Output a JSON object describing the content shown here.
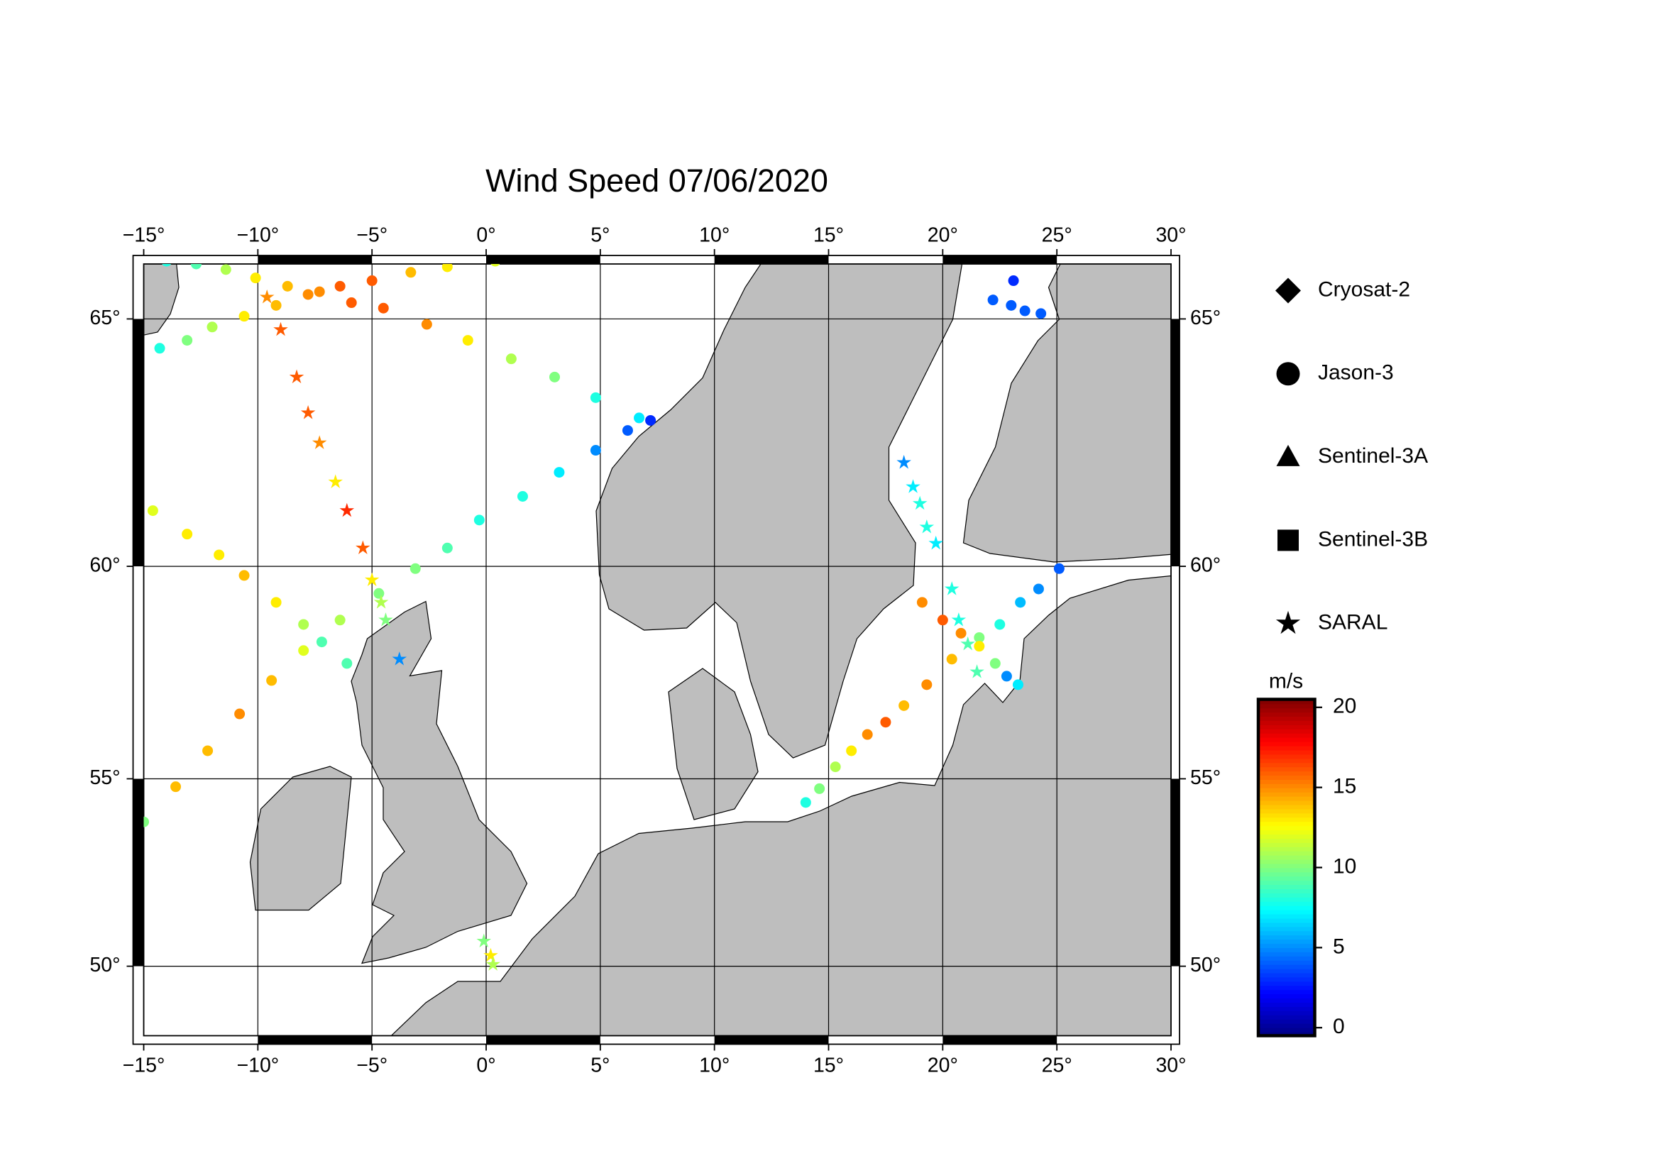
{
  "chart_data": {
    "type": "map",
    "title": "Wind Speed 07/06/2020",
    "projection": "mercator",
    "xlim": [
      -15,
      30
    ],
    "ylim": [
      48,
      66
    ],
    "xticks": [
      {
        "value": -15,
        "label": "−15°"
      },
      {
        "value": -10,
        "label": "−10°"
      },
      {
        "value": -5,
        "label": "−5°"
      },
      {
        "value": 0,
        "label": "0°"
      },
      {
        "value": 5,
        "label": "5°"
      },
      {
        "value": 10,
        "label": "10°"
      },
      {
        "value": 15,
        "label": "15°"
      },
      {
        "value": 20,
        "label": "20°"
      },
      {
        "value": 25,
        "label": "25°"
      },
      {
        "value": 30,
        "label": "30°"
      }
    ],
    "yticks": [
      {
        "value": 50,
        "label": "50°"
      },
      {
        "value": 55,
        "label": "55°"
      },
      {
        "value": 60,
        "label": "60°"
      },
      {
        "value": 65,
        "label": "65°"
      }
    ],
    "grid": true,
    "colorbar": {
      "label": "m/s",
      "colormap": "jet",
      "clim": [
        -0.5,
        20.5
      ],
      "ticks": [
        0,
        5,
        10,
        15,
        20
      ]
    },
    "satellites": [
      {
        "name": "Cryosat-2",
        "marker": "diamond",
        "tracks": []
      },
      {
        "name": "Jason-3",
        "marker": "circle",
        "tracks": [
          {
            "lon": [
              -14.0,
              -12.7,
              -11.4,
              -10.1,
              -8.7,
              -7.3,
              -5.9,
              -4.5,
              -2.6,
              -0.8,
              1.1,
              3.0,
              4.8,
              6.7
            ],
            "lat": [
              66.05,
              66.0,
              65.9,
              65.75,
              65.6,
              65.5,
              65.3,
              65.2,
              64.9,
              64.6,
              64.25,
              63.9,
              63.5,
              63.1
            ],
            "speed": [
              8,
              9,
              11,
              13,
              14,
              15,
              16,
              16,
              15,
              13,
              11,
              10,
              8,
              7
            ]
          },
          {
            "lon": [
              -14.3,
              -13.1,
              -12.0,
              -10.6,
              -9.2,
              -7.8,
              -6.4,
              -5.0,
              -3.3,
              -1.7,
              0.4
            ],
            "lat": [
              64.45,
              64.6,
              64.85,
              65.05,
              65.25,
              65.45,
              65.6,
              65.7,
              65.85,
              65.95,
              66.05
            ],
            "speed": [
              8,
              10,
              11,
              13,
              14,
              15,
              16,
              16,
              14,
              13,
              12
            ]
          },
          {
            "lon": [
              -15.0,
              -13.6,
              -12.2,
              -10.8,
              -9.4,
              -8.0,
              -6.4,
              -4.7,
              -3.1,
              -1.7,
              -0.3,
              1.6,
              3.2,
              4.8,
              6.2,
              7.2
            ],
            "lat": [
              53.9,
              54.8,
              55.7,
              56.6,
              57.4,
              58.1,
              58.8,
              59.4,
              59.95,
              60.4,
              61.0,
              61.5,
              62.0,
              62.45,
              62.85,
              63.05
            ],
            "speed": [
              10,
              14,
              14,
              15,
              14,
              12,
              11,
              10,
              10,
              9,
              8,
              8,
              7,
              5,
              4,
              3
            ]
          },
          {
            "lon": [
              -14.6,
              -13.1,
              -11.7,
              -10.6,
              -9.2,
              -8.0,
              -7.2
            ],
            "lat": [
              61.2,
              60.7,
              60.25,
              59.8,
              59.2,
              58.7,
              58.3
            ],
            "speed": [
              12,
              13,
              13,
              14,
              13,
              11,
              9
            ]
          },
          {
            "lon": [
              14.0,
              14.6,
              15.3,
              16.0,
              16.7,
              17.5,
              18.3,
              19.3,
              20.4,
              21.6,
              22.5,
              23.4,
              24.2,
              25.1
            ],
            "lat": [
              54.4,
              54.75,
              55.3,
              55.7,
              56.1,
              56.4,
              56.8,
              57.3,
              57.9,
              58.4,
              58.7,
              59.2,
              59.5,
              59.95
            ],
            "speed": [
              8,
              10,
              11,
              13,
              15,
              16,
              14,
              15,
              14,
              10,
              8,
              6,
              5,
              4
            ]
          },
          {
            "lon": [
              19.1,
              20.0,
              20.8,
              21.6,
              22.3,
              22.8,
              23.3
            ],
            "lat": [
              59.2,
              58.8,
              58.5,
              58.2,
              57.8,
              57.5,
              57.3
            ],
            "speed": [
              15,
              16,
              15,
              13,
              10,
              5,
              7
            ]
          },
          {
            "lon": [
              23.1,
              22.2,
              23.0,
              23.6,
              24.3
            ],
            "lat": [
              65.7,
              65.35,
              65.25,
              65.15,
              65.1
            ],
            "speed": [
              3,
              4,
              4,
              4,
              4
            ]
          },
          {
            "lon": [
              -6.1
            ],
            "lat": [
              57.8
            ],
            "speed": [
              9
            ]
          }
        ]
      },
      {
        "name": "Sentinel-3A",
        "marker": "triangle",
        "tracks": []
      },
      {
        "name": "Sentinel-3B",
        "marker": "square",
        "tracks": []
      },
      {
        "name": "SARAL",
        "marker": "star",
        "tracks": [
          {
            "lon": [
              -9.6,
              -9.0,
              -8.3,
              -7.8,
              -7.3,
              -6.6,
              -6.1,
              -5.4,
              -5.0,
              -4.6,
              -4.4
            ],
            "lat": [
              65.4,
              64.8,
              63.9,
              63.2,
              62.6,
              61.8,
              61.2,
              60.4,
              59.7,
              59.2,
              58.8
            ],
            "speed": [
              15,
              16,
              16,
              16,
              15,
              13,
              17,
              16,
              13,
              11,
              10
            ]
          },
          {
            "lon": [
              -3.8
            ],
            "lat": [
              57.9
            ],
            "speed": [
              5
            ]
          },
          {
            "lon": [
              18.3,
              18.7,
              19.0,
              19.3,
              19.7,
              20.4,
              20.7,
              21.1,
              21.5
            ],
            "lat": [
              62.2,
              61.7,
              61.35,
              60.85,
              60.5,
              59.5,
              58.8,
              58.25,
              57.6
            ],
            "speed": [
              5,
              7,
              8,
              8,
              7,
              8,
              8,
              9,
              9
            ]
          },
          {
            "lon": [
              -0.1,
              0.2,
              0.3
            ],
            "lat": [
              50.7,
              50.3,
              50.05
            ],
            "speed": [
              10,
              13,
              11
            ]
          }
        ]
      }
    ]
  }
}
